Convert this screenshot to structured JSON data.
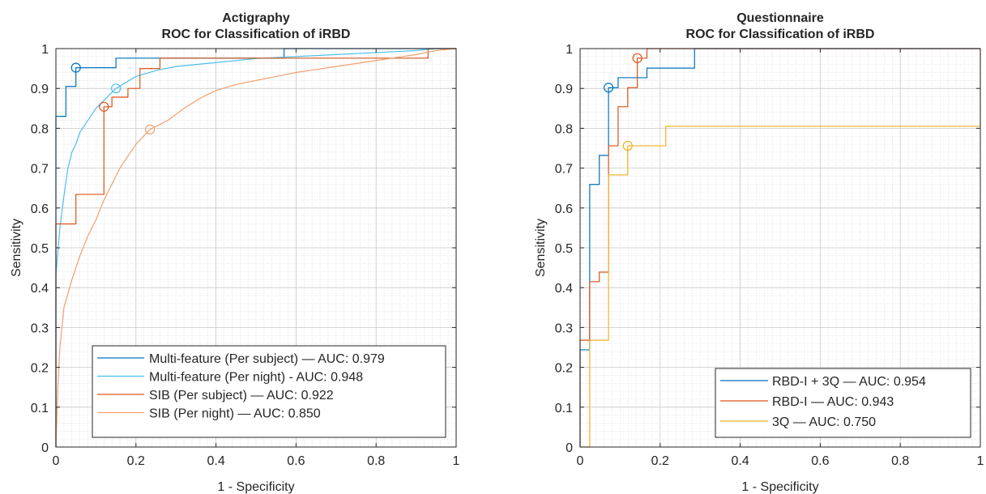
{
  "chart_data": [
    {
      "type": "line",
      "title": [
        "Actigraphy",
        "ROC for Classification of iRBD"
      ],
      "xlabel": "1 - Specificity",
      "ylabel": "Sensitivity",
      "xlim": [
        0,
        1
      ],
      "ylim": [
        0,
        1
      ],
      "xticks": [
        "0",
        "0.2",
        "0.4",
        "0.6",
        "0.8",
        "1"
      ],
      "yticks": [
        "0",
        "0.1",
        "0.2",
        "0.3",
        "0.4",
        "0.5",
        "0.6",
        "0.7",
        "0.8",
        "0.9",
        "1"
      ],
      "grid": true,
      "minor_grid": true,
      "legend_position": "bottom-right",
      "series": [
        {
          "name": "Multi-feature (Per subject) — AUC: 0.979",
          "color": "#0072BD",
          "operating_point": [
            0.05,
            0.952
          ],
          "points": [
            [
              0,
              0
            ],
            [
              0,
              0.83
            ],
            [
              0.025,
              0.83
            ],
            [
              0.025,
              0.905
            ],
            [
              0.05,
              0.905
            ],
            [
              0.05,
              0.952
            ],
            [
              0.15,
              0.952
            ],
            [
              0.15,
              0.976
            ],
            [
              0.57,
              0.976
            ],
            [
              0.57,
              1.0
            ],
            [
              1,
              1
            ]
          ]
        },
        {
          "name": "Multi-feature (Per night) - AUC: 0.948",
          "color": "#4DBEEE",
          "operating_point": [
            0.15,
            0.9
          ],
          "points": [
            [
              0,
              0
            ],
            [
              0,
              0.43
            ],
            [
              0.01,
              0.55
            ],
            [
              0.02,
              0.63
            ],
            [
              0.03,
              0.7
            ],
            [
              0.04,
              0.74
            ],
            [
              0.05,
              0.76
            ],
            [
              0.06,
              0.79
            ],
            [
              0.08,
              0.82
            ],
            [
              0.1,
              0.85
            ],
            [
              0.12,
              0.87
            ],
            [
              0.15,
              0.9
            ],
            [
              0.2,
              0.93
            ],
            [
              0.25,
              0.945
            ],
            [
              0.3,
              0.955
            ],
            [
              0.4,
              0.965
            ],
            [
              0.5,
              0.975
            ],
            [
              0.6,
              0.98
            ],
            [
              0.7,
              0.985
            ],
            [
              0.8,
              0.99
            ],
            [
              0.9,
              0.995
            ],
            [
              0.95,
              1.0
            ],
            [
              1,
              1
            ]
          ]
        },
        {
          "name": "SIB (Per subject) — AUC: 0.922",
          "color": "#D95319",
          "operating_point": [
            0.12,
            0.854
          ],
          "points": [
            [
              0,
              0
            ],
            [
              0,
              0.56
            ],
            [
              0.05,
              0.56
            ],
            [
              0.05,
              0.634
            ],
            [
              0.12,
              0.634
            ],
            [
              0.12,
              0.854
            ],
            [
              0.14,
              0.854
            ],
            [
              0.14,
              0.878
            ],
            [
              0.18,
              0.878
            ],
            [
              0.18,
              0.9
            ],
            [
              0.21,
              0.9
            ],
            [
              0.21,
              0.95
            ],
            [
              0.26,
              0.95
            ],
            [
              0.26,
              0.976
            ],
            [
              0.93,
              0.976
            ],
            [
              0.93,
              1.0
            ],
            [
              1,
              1
            ]
          ]
        },
        {
          "name": "SIB (Per night) — AUC: 0.850",
          "color": "#F0A070",
          "operating_point": [
            0.235,
            0.797
          ],
          "points": [
            [
              0,
              0
            ],
            [
              0.005,
              0.15
            ],
            [
              0.01,
              0.25
            ],
            [
              0.02,
              0.35
            ],
            [
              0.04,
              0.42
            ],
            [
              0.06,
              0.48
            ],
            [
              0.08,
              0.53
            ],
            [
              0.1,
              0.57
            ],
            [
              0.12,
              0.62
            ],
            [
              0.14,
              0.66
            ],
            [
              0.16,
              0.7
            ],
            [
              0.18,
              0.73
            ],
            [
              0.2,
              0.76
            ],
            [
              0.235,
              0.797
            ],
            [
              0.28,
              0.82
            ],
            [
              0.32,
              0.85
            ],
            [
              0.36,
              0.875
            ],
            [
              0.4,
              0.895
            ],
            [
              0.45,
              0.91
            ],
            [
              0.5,
              0.92
            ],
            [
              0.55,
              0.93
            ],
            [
              0.6,
              0.94
            ],
            [
              0.7,
              0.955
            ],
            [
              0.8,
              0.97
            ],
            [
              0.9,
              0.985
            ],
            [
              0.95,
              0.995
            ],
            [
              1,
              1
            ]
          ]
        }
      ]
    },
    {
      "type": "line",
      "title": [
        "Questionnaire",
        "ROC for Classification of iRBD"
      ],
      "xlabel": "1 - Specificity",
      "ylabel": "Sensitivity",
      "xlim": [
        0,
        1
      ],
      "ylim": [
        0,
        1
      ],
      "xticks": [
        "0",
        "0.2",
        "0.4",
        "0.6",
        "0.8",
        "1"
      ],
      "yticks": [
        "0",
        "0.1",
        "0.2",
        "0.3",
        "0.4",
        "0.5",
        "0.6",
        "0.7",
        "0.8",
        "0.9",
        "1"
      ],
      "grid": true,
      "minor_grid": true,
      "legend_position": "bottom-right",
      "series": [
        {
          "name": "RBD-I + 3Q — AUC: 0.954",
          "color": "#0072BD",
          "operating_point": [
            0.071,
            0.902
          ],
          "points": [
            [
              0,
              0
            ],
            [
              0,
              0.244
            ],
            [
              0.024,
              0.244
            ],
            [
              0.024,
              0.659
            ],
            [
              0.048,
              0.659
            ],
            [
              0.048,
              0.732
            ],
            [
              0.071,
              0.732
            ],
            [
              0.071,
              0.902
            ],
            [
              0.095,
              0.902
            ],
            [
              0.095,
              0.927
            ],
            [
              0.167,
              0.927
            ],
            [
              0.167,
              0.951
            ],
            [
              0.214,
              0.951
            ],
            [
              0.214,
              0.951
            ],
            [
              0.286,
              0.951
            ],
            [
              0.286,
              1.0
            ],
            [
              1,
              1
            ]
          ]
        },
        {
          "name": "RBD-I — AUC: 0.943",
          "color": "#D95319",
          "operating_point": [
            0.143,
            0.976
          ],
          "points": [
            [
              0,
              0
            ],
            [
              0,
              0.268
            ],
            [
              0.024,
              0.268
            ],
            [
              0.024,
              0.415
            ],
            [
              0.048,
              0.415
            ],
            [
              0.048,
              0.439
            ],
            [
              0.071,
              0.439
            ],
            [
              0.071,
              0.756
            ],
            [
              0.095,
              0.756
            ],
            [
              0.095,
              0.854
            ],
            [
              0.119,
              0.854
            ],
            [
              0.119,
              0.902
            ],
            [
              0.143,
              0.902
            ],
            [
              0.143,
              0.976
            ],
            [
              0.167,
              0.976
            ],
            [
              0.167,
              1.0
            ],
            [
              1,
              1
            ]
          ]
        },
        {
          "name": "3Q — AUC: 0.750",
          "color": "#EDB120",
          "operating_point": [
            0.119,
            0.756
          ],
          "points": [
            [
              0,
              0
            ],
            [
              0.024,
              0
            ],
            [
              0.024,
              0.268
            ],
            [
              0.071,
              0.268
            ],
            [
              0.071,
              0.683
            ],
            [
              0.119,
              0.683
            ],
            [
              0.119,
              0.756
            ],
            [
              0.214,
              0.756
            ],
            [
              0.214,
              0.805
            ],
            [
              1,
              0.805
            ],
            [
              1,
              1
            ]
          ]
        }
      ]
    }
  ]
}
